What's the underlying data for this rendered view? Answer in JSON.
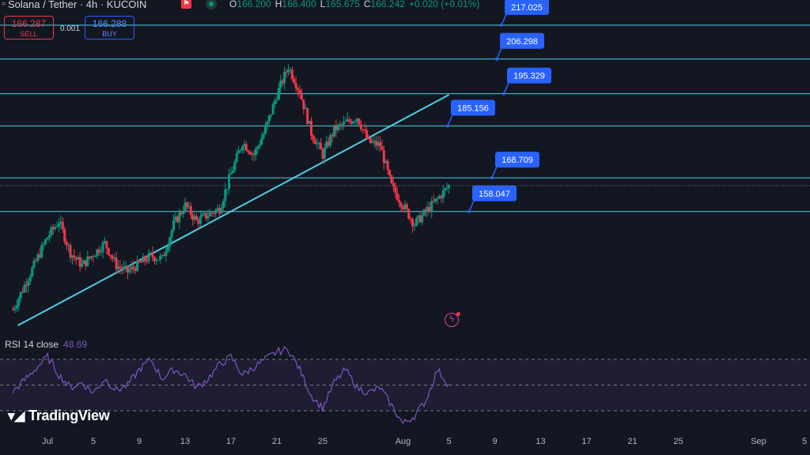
{
  "header": {
    "symbol_title": "Solana / Tether · 4h · KUCOIN",
    "ohlc": [
      {
        "k": "O",
        "v": "166.200"
      },
      {
        "k": "H",
        "v": "166.400"
      },
      {
        "k": "L",
        "v": "165.675"
      },
      {
        "k": "C",
        "v": "166.242"
      },
      {
        "k": "",
        "v": "+0.020 (+0.01%)"
      }
    ]
  },
  "trade": {
    "sell_price": "166.287",
    "sell_label": "SELL",
    "spread": "0.001",
    "buy_price": "166.288",
    "buy_label": "BUY"
  },
  "rsi": {
    "label": "RSI 14 close",
    "value": "48.69"
  },
  "logo": {
    "text": "TradingView"
  },
  "colors": {
    "up": "#089981",
    "down": "#f23645",
    "level_line": "#4dd0e1",
    "label_bg": "#2962ff",
    "rsi_line": "#7e57c2"
  },
  "chart_data": {
    "type": "candlestick",
    "ylim": [
      120,
      225
    ],
    "x_ticks": [
      "Jul",
      "5",
      "9",
      "13",
      "17",
      "21",
      "25",
      "Aug",
      "5",
      "9",
      "13",
      "17",
      "21",
      "25",
      "Sep",
      "5"
    ],
    "levels": [
      217.025,
      206.298,
      195.329,
      185.156,
      168.709,
      158.047
    ],
    "current_price": 166.242,
    "trendline": {
      "from": {
        "x": "Jun 28",
        "y": 122
      },
      "to": {
        "x": "Aug 5",
        "y": 194
      }
    },
    "price_path": [
      [
        "Jun 28",
        127
      ],
      [
        "Jul 1",
        150
      ],
      [
        "Jul 2",
        155
      ],
      [
        "Jul 3",
        145
      ],
      [
        "Jul 4",
        141
      ],
      [
        "Jul 6",
        148
      ],
      [
        "Jul 7",
        141
      ],
      [
        "Jul 8",
        139
      ],
      [
        "Jul 10",
        144
      ],
      [
        "Jul 11",
        143
      ],
      [
        "Jul 12",
        154
      ],
      [
        "Jul 13",
        160
      ],
      [
        "Jul 14",
        155
      ],
      [
        "Jul 16",
        159
      ],
      [
        "Jul 17",
        170
      ],
      [
        "Jul 18",
        180
      ],
      [
        "Jul 19",
        176
      ],
      [
        "Jul 20",
        184
      ],
      [
        "Jul 21",
        195
      ],
      [
        "Jul 22",
        204
      ],
      [
        "Jul 23",
        196
      ],
      [
        "Jul 24",
        183
      ],
      [
        "Jul 25",
        176
      ],
      [
        "Jul 26",
        184
      ],
      [
        "Jul 27",
        186
      ],
      [
        "Jul 28",
        188
      ],
      [
        "Jul 29",
        180
      ],
      [
        "Jul 30",
        179
      ],
      [
        "Jul 31",
        166
      ],
      [
        "Aug 1",
        160
      ],
      [
        "Aug 2",
        154
      ],
      [
        "Aug 3",
        158
      ],
      [
        "Aug 4",
        162
      ],
      [
        "Aug 5",
        166.2
      ]
    ],
    "rsi_series": {
      "name": "RSI 14 close",
      "ylim": [
        0,
        100
      ],
      "bands": [
        70,
        50,
        30
      ],
      "path": [
        [
          "Jun 28",
          45
        ],
        [
          "Jul 1",
          72
        ],
        [
          "Jul 2",
          58
        ],
        [
          "Jul 3",
          48
        ],
        [
          "Jul 4",
          52
        ],
        [
          "Jul 5",
          44
        ],
        [
          "Jul 6",
          55
        ],
        [
          "Jul 7",
          46
        ],
        [
          "Jul 8",
          50
        ],
        [
          "Jul 9",
          62
        ],
        [
          "Jul 10",
          70
        ],
        [
          "Jul 11",
          55
        ],
        [
          "Jul 12",
          62
        ],
        [
          "Jul 13",
          58
        ],
        [
          "Jul 14",
          48
        ],
        [
          "Jul 15",
          55
        ],
        [
          "Jul 16",
          66
        ],
        [
          "Jul 17",
          72
        ],
        [
          "Jul 18",
          58
        ],
        [
          "Jul 19",
          64
        ],
        [
          "Jul 20",
          70
        ],
        [
          "Jul 21",
          76
        ],
        [
          "Jul 22",
          78
        ],
        [
          "Jul 23",
          62
        ],
        [
          "Jul 24",
          42
        ],
        [
          "Jul 25",
          32
        ],
        [
          "Jul 26",
          52
        ],
        [
          "Jul 27",
          62
        ],
        [
          "Jul 28",
          48
        ],
        [
          "Jul 29",
          44
        ],
        [
          "Jul 30",
          48
        ],
        [
          "Jul 31",
          34
        ],
        [
          "Aug 1",
          20
        ],
        [
          "Aug 2",
          26
        ],
        [
          "Aug 3",
          38
        ],
        [
          "Aug 4",
          62
        ],
        [
          "Aug 5",
          50
        ]
      ]
    }
  }
}
